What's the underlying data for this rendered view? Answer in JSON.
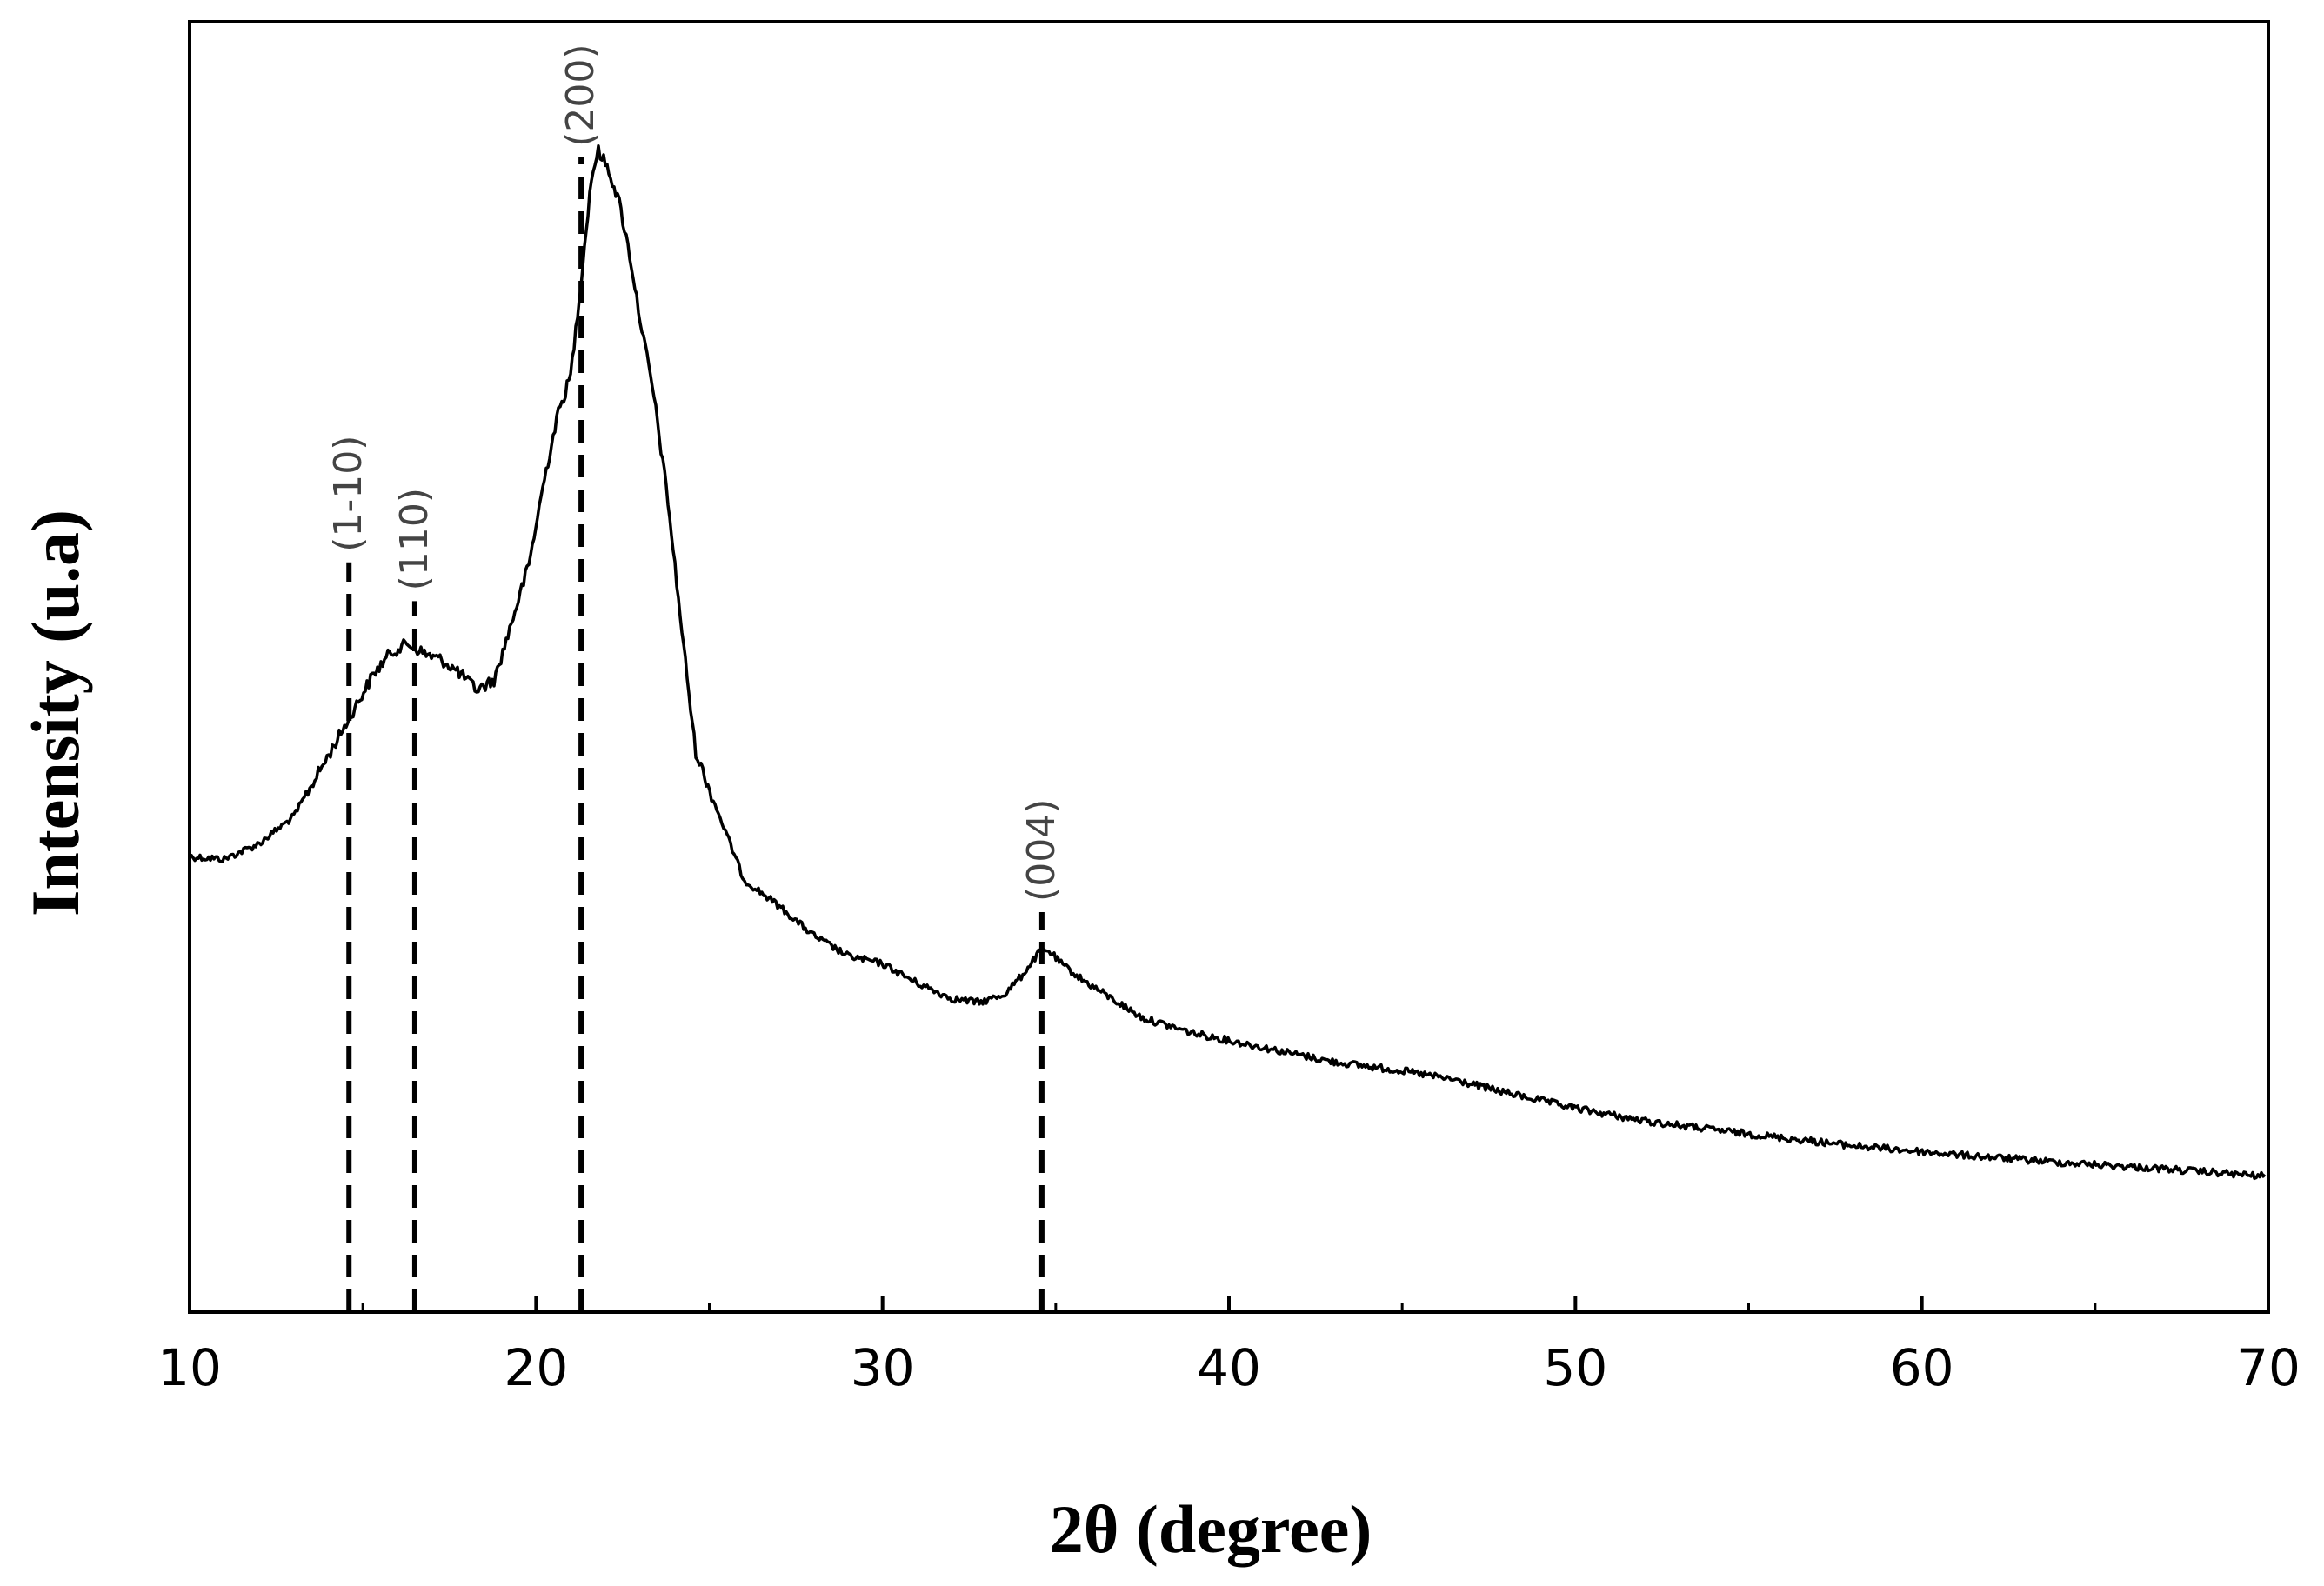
{
  "chart_data": {
    "type": "line",
    "title": "",
    "xlabel": "2θ (degree)",
    "ylabel": "Intensity (u.a)",
    "xlim": [
      10,
      70
    ],
    "ylim": [
      0,
      100
    ],
    "y_ticks_shown": false,
    "grid": false,
    "legend": "none",
    "x_ticks": [
      {
        "value": 10,
        "label": "10"
      },
      {
        "value": 20,
        "label": "20"
      },
      {
        "value": 30,
        "label": "30"
      },
      {
        "value": 40,
        "label": "40"
      },
      {
        "value": 50,
        "label": "50"
      },
      {
        "value": 60,
        "label": "60"
      },
      {
        "value": 70,
        "label": "70"
      }
    ],
    "x_minor_ticks": [
      15,
      25,
      35,
      45,
      55,
      65
    ],
    "series": [
      {
        "color": "#000000",
        "x": [
          10,
          11,
          12,
          13,
          14,
          14.7,
          15.3,
          15.8,
          16.3,
          16.8,
          17.3,
          17.8,
          18.3,
          18.8,
          19.3,
          19.8,
          20.2,
          20.6,
          21.0,
          21.3,
          21.6,
          21.8,
          22.1,
          22.4,
          22.7,
          23.0,
          23.4,
          23.8,
          24.2,
          24.6,
          25.0,
          25.5,
          26.0,
          27.0,
          28.0,
          29.0,
          30.0,
          31.0,
          32.0,
          32.8,
          33.5,
          34.0,
          34.5,
          34.8,
          35.2,
          35.8,
          36.5,
          37.5,
          39.0,
          41.0,
          43.0,
          45.0,
          46.5,
          48.0,
          50.0,
          52.0,
          55.0,
          58.0,
          61.0,
          64.0,
          67.0,
          70.0
        ],
        "y": [
          35.3,
          35.1,
          36.3,
          38.4,
          43.1,
          46.5,
          49.4,
          51.1,
          51.8,
          51.0,
          50.5,
          49.5,
          48.2,
          49.0,
          53.5,
          58.0,
          64.0,
          69.3,
          72.6,
          80.0,
          88.0,
          90.0,
          88.5,
          86.0,
          82.0,
          77.0,
          71.0,
          63.0,
          53.0,
          43.5,
          40.5,
          37.0,
          33.5,
          31.5,
          29.2,
          27.6,
          27.0,
          25.5,
          24.3,
          24.0,
          24.6,
          26.0,
          27.8,
          28.0,
          26.9,
          25.7,
          24.5,
          22.8,
          21.6,
          20.5,
          19.4,
          18.7,
          18.0,
          17.0,
          15.8,
          14.8,
          13.8,
          12.9,
          12.2,
          11.6,
          11.1,
          10.5
        ]
      }
    ],
    "reference_lines": [
      {
        "x": 14.6,
        "label": "(1-10)",
        "y_top": 58.1
      },
      {
        "x": 16.5,
        "label": "(110)",
        "y_top": 55.1
      },
      {
        "x": 21.3,
        "label": "(200)",
        "y_top": 89.5
      },
      {
        "x": 34.6,
        "label": "(004)",
        "y_top": 31.0
      }
    ]
  }
}
